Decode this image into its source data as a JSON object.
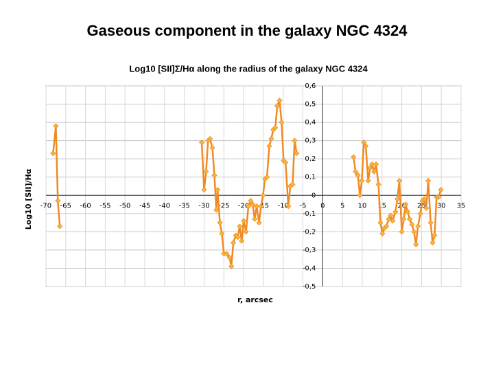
{
  "title": "Gaseous component in the galaxy NGC 4324",
  "chart_data": {
    "type": "line",
    "title": "Log10 [SII]Σ/Hα along the radius of the galaxy NGC 4324",
    "x_label": "r, arcsec",
    "y_label": "Log10 [SII]/Hα",
    "xlim": [
      -70,
      35
    ],
    "ylim": [
      -0.5,
      0.6
    ],
    "xticks": [
      -70,
      -65,
      -60,
      -55,
      -50,
      -45,
      -40,
      -35,
      -30,
      -25,
      -20,
      -15,
      -10,
      -5,
      0,
      5,
      10,
      15,
      20,
      25,
      30,
      35
    ],
    "yticks": [
      {
        "value": -0.5,
        "label": "-0,5"
      },
      {
        "value": -0.4,
        "label": "-0,4"
      },
      {
        "value": -0.3,
        "label": "-0,3"
      },
      {
        "value": -0.2,
        "label": "-0,2"
      },
      {
        "value": -0.1,
        "label": "-0,1"
      },
      0,
      {
        "value": 0.1,
        "label": "0,1"
      },
      {
        "value": 0.2,
        "label": "0,2"
      },
      {
        "value": 0.3,
        "label": "0,3"
      },
      {
        "value": 0.4,
        "label": "0,4"
      },
      {
        "value": 0.5,
        "label": "0,5"
      },
      {
        "value": 0.6,
        "label": "0,6"
      }
    ],
    "grid": true,
    "x": [
      -68.2,
      -67.5,
      -67,
      -66.5,
      null,
      -30.6,
      -30.0,
      -29.5,
      -29,
      -28.5,
      -27.9,
      -27.4,
      -26.9,
      -26.6,
      -26,
      -25.5,
      -25,
      -24.3,
      -23.6,
      -23.1,
      -22.6,
      -22,
      -21.5,
      -21,
      -20.5,
      -20,
      -19.4,
      -18.8,
      -18.2,
      -17.7,
      -17.2,
      -16.7,
      -16.1,
      -15.6,
      -15.1,
      -14.6,
      -14.1,
      -13.5,
      -13,
      -12.5,
      -12,
      -11.5,
      -10.9,
      -10.4,
      -9.9,
      -9.4,
      -8.7,
      -8.2,
      -7.6,
      -7.1,
      -6.6,
      null,
      7.8,
      8.3,
      8.9,
      9.4,
      9.9,
      10.4,
      10.9,
      11.5,
      12.0,
      12.5,
      13.0,
      13.5,
      14.1,
      14.6,
      15.1,
      15.6,
      16.1,
      16.7,
      17.2,
      17.7,
      18.4,
      18.9,
      19.4,
      20,
      20.5,
      21,
      21.5,
      22,
      22.6,
      23.1,
      23.6,
      24.1,
      24.7,
      25.2,
      25.7,
      26.2,
      26.7,
      27.3,
      27.8,
      28.3,
      28.8,
      29.3,
      29.9
    ],
    "series": [
      {
        "color": "#f08a24",
        "marker_color": "#f5b83a",
        "values": [
          0.23,
          0.38,
          -0.03,
          -0.17,
          null,
          0.29,
          0.03,
          0.13,
          0.3,
          0.31,
          0.26,
          0.11,
          -0.08,
          0.03,
          -0.15,
          -0.21,
          -0.32,
          -0.32,
          -0.34,
          -0.39,
          -0.26,
          -0.22,
          -0.23,
          -0.17,
          -0.25,
          -0.14,
          -0.2,
          -0.06,
          -0.03,
          -0.05,
          -0.13,
          -0.06,
          -0.15,
          -0.06,
          0.0,
          0.09,
          0.1,
          0.27,
          0.31,
          0.36,
          0.37,
          0.49,
          0.52,
          0.4,
          0.19,
          0.18,
          -0.06,
          0.05,
          0.06,
          0.3,
          0.23,
          null,
          0.21,
          0.13,
          0.11,
          0.0,
          0.08,
          0.29,
          0.27,
          0.08,
          0.15,
          0.17,
          0.13,
          0.17,
          0.06,
          -0.15,
          -0.21,
          -0.18,
          -0.17,
          -0.13,
          -0.11,
          -0.14,
          -0.09,
          -0.02,
          0.08,
          -0.2,
          -0.13,
          -0.05,
          -0.09,
          -0.13,
          -0.16,
          -0.2,
          -0.27,
          -0.17,
          -0.1,
          -0.03,
          -0.02,
          -0.07,
          0.08,
          -0.15,
          -0.26,
          -0.22,
          -0.01,
          -0.01,
          0.03
        ]
      }
    ]
  }
}
